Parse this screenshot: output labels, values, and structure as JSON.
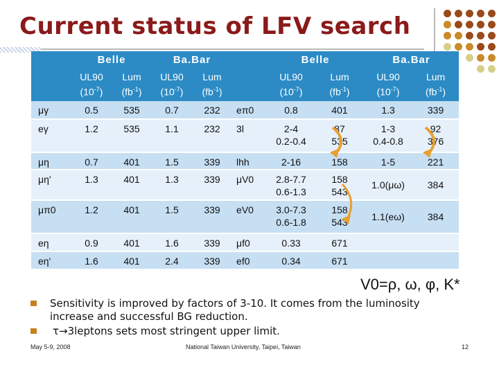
{
  "title": "Current status of LFV search",
  "colors": {
    "title": "#8b1a1a",
    "header_bg": "#2c8bc5",
    "row_odd": "#c7dff3",
    "row_even": "#e6f0fa",
    "dot_dark": "#9a4a1a",
    "dot_mid": "#c98a2a",
    "dot_light": "#d6cf8a",
    "arrow": "#e8a030"
  },
  "table": {
    "group_headers": [
      "Belle",
      "Ba.Bar",
      "Belle",
      "Ba.Bar"
    ],
    "sub_headers": [
      {
        "ul": "UL90",
        "ul_unit": "(10",
        "ul_exp": "-7",
        "ul_close": ")",
        "lum": "Lum",
        "lum_unit": "(fb",
        "lum_exp": "-1",
        "lum_close": ")"
      }
    ],
    "left_rows": [
      {
        "proc": "μγ",
        "b_ul": "0.5",
        "b_lum": "535",
        "bb_ul": "0.7",
        "bb_lum": "232"
      },
      {
        "proc": "eγ",
        "b_ul": "1.2",
        "b_lum": "535",
        "bb_ul": "1.1",
        "bb_lum": "232"
      },
      {
        "proc": "μη",
        "b_ul": "0.7",
        "b_lum": "401",
        "bb_ul": "1.5",
        "bb_lum": "339"
      },
      {
        "proc": "μη'",
        "b_ul": "1.3",
        "b_lum": "401",
        "bb_ul": "1.3",
        "bb_lum": "339"
      },
      {
        "proc": "μπ0",
        "b_ul": "1.2",
        "b_lum": "401",
        "bb_ul": "1.5",
        "bb_lum": "339"
      },
      {
        "proc": "eη",
        "b_ul": "0.9",
        "b_lum": "401",
        "bb_ul": "1.6",
        "bb_lum": "339"
      },
      {
        "proc": "eη'",
        "b_ul": "1.6",
        "b_lum": "401",
        "bb_ul": "2.4",
        "bb_lum": "339"
      }
    ],
    "right_rows": [
      {
        "proc": "eπ0",
        "b_ul": "0.8",
        "b_lum": "401",
        "bb_ul": "1.3",
        "bb_lum": "339"
      },
      {
        "proc": "3l",
        "b_ul": "2-4",
        "b_ul2": "0.2-0.4",
        "b_lum": "87",
        "b_lum2": "535",
        "bb_ul": "1-3",
        "bb_ul2": "0.4-0.8",
        "bb_lum": "92",
        "bb_lum2": "376"
      },
      {
        "proc": "lhh",
        "b_ul": "2-16",
        "b_lum": "158",
        "bb_ul": "1-5",
        "bb_lum": "221"
      },
      {
        "proc": "μV0",
        "b_ul": "2.8-7.7",
        "b_ul2": "0.6-1.3",
        "b_lum": "158",
        "b_lum2": "543",
        "bb_ul": "1.0(μω)",
        "bb_lum": "384"
      },
      {
        "proc": "eV0",
        "b_ul": "3.0-7.3",
        "b_ul2": "0.6-1.8",
        "b_lum": "158",
        "b_lum2": "543",
        "bb_ul": "1.1(eω)",
        "bb_lum": "384"
      },
      {
        "proc": "μf0",
        "b_ul": "0.33",
        "b_lum": "671"
      },
      {
        "proc": "ef0",
        "b_ul": "0.34",
        "b_lum": "671"
      }
    ]
  },
  "v0_note": "V0=ρ, ω, φ, K*",
  "bullets": [
    {
      "line1": "Sensitivity is improved by factors of 3-10. It comes from the luminosity",
      "line2": "increase and successful BG reduction."
    },
    {
      "line1": "τ→3leptons sets most stringent upper limit."
    }
  ],
  "footer": {
    "date": "May 5-9, 2008",
    "venue": "National Taiwan University, Taipei, Taiwan",
    "page": "12"
  }
}
